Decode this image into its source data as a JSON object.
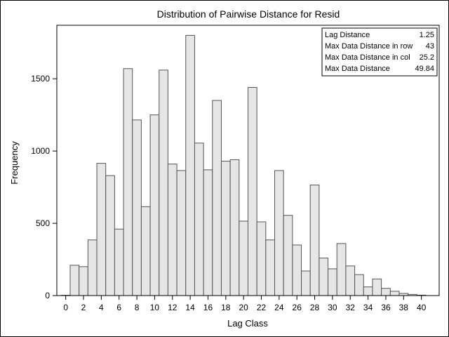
{
  "chart_data": {
    "type": "bar",
    "title": "Distribution of Pairwise Distance for Resid",
    "xlabel": "Lag Class",
    "ylabel": "Frequency",
    "x_range": [
      -1,
      42
    ],
    "ylim": [
      0,
      1870
    ],
    "xticks": [
      0,
      2,
      4,
      6,
      8,
      10,
      12,
      14,
      16,
      18,
      20,
      22,
      24,
      26,
      28,
      30,
      32,
      34,
      36,
      38,
      40
    ],
    "yticks": [
      0,
      500,
      1000,
      1500
    ],
    "legend_position": "top-right",
    "grid": false,
    "colors": {
      "bar_fill": "#e6e6e6",
      "bar_stroke": "#555555",
      "axis": "#000000"
    },
    "categories": [
      0,
      1,
      2,
      3,
      4,
      5,
      6,
      7,
      8,
      9,
      10,
      11,
      12,
      13,
      14,
      15,
      16,
      17,
      18,
      19,
      20,
      21,
      22,
      23,
      24,
      25,
      26,
      27,
      28,
      29,
      30,
      31,
      32,
      33,
      34,
      35,
      36,
      37,
      38,
      39,
      40
    ],
    "values": [
      2,
      210,
      200,
      385,
      915,
      830,
      460,
      1570,
      1215,
      615,
      1250,
      1560,
      910,
      865,
      1800,
      1055,
      870,
      1350,
      930,
      940,
      515,
      1440,
      510,
      385,
      865,
      555,
      350,
      170,
      765,
      260,
      185,
      360,
      205,
      145,
      60,
      115,
      50,
      30,
      15,
      8,
      3
    ]
  },
  "inset": {
    "rows": [
      {
        "label": "Lag Distance",
        "value": "1.25"
      },
      {
        "label": "Max Data Distance in row",
        "value": "43"
      },
      {
        "label": "Max Data Distance in col",
        "value": "25.2"
      },
      {
        "label": "Max Data Distance",
        "value": "49.84"
      }
    ]
  }
}
